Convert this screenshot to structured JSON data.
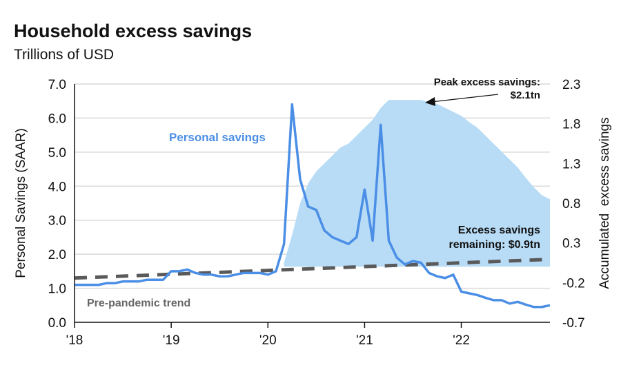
{
  "title": "Household excess savings",
  "subtitle": "Trillions of USD",
  "chart_data": {
    "type": "line",
    "title": "Household excess savings",
    "subtitle": "Trillions of USD",
    "ylabel": "Personal Savings (SAAR)",
    "y2label": "Accumulated  excess savings",
    "ylim": [
      0,
      7
    ],
    "y2lim": [
      -0.7,
      2.3
    ],
    "yticks": [
      "0.0",
      "1.0",
      "2.0",
      "3.0",
      "4.0",
      "5.0",
      "6.0",
      "7.0"
    ],
    "y2ticks": [
      "-0.7",
      "-0.2",
      "0.3",
      "0.8",
      "1.3",
      "1.8",
      "2.3"
    ],
    "xticks": [
      "'18",
      "'19",
      "'20",
      "'21",
      "'22"
    ],
    "x_start": "2018-01",
    "x_end": "2022-12",
    "frequency": "monthly",
    "grid": true,
    "series": [
      {
        "name": "Personal savings",
        "color": "#4a8ee6",
        "axis": "left",
        "type": "line",
        "values": [
          1.1,
          1.1,
          1.1,
          1.1,
          1.15,
          1.15,
          1.2,
          1.2,
          1.2,
          1.25,
          1.25,
          1.25,
          1.5,
          1.5,
          1.55,
          1.45,
          1.4,
          1.4,
          1.35,
          1.35,
          1.4,
          1.45,
          1.45,
          1.45,
          1.4,
          1.5,
          2.3,
          6.4,
          4.2,
          3.4,
          3.3,
          2.7,
          2.5,
          2.4,
          2.3,
          2.5,
          3.9,
          2.4,
          5.8,
          2.4,
          1.9,
          1.7,
          1.8,
          1.75,
          1.45,
          1.35,
          1.3,
          1.4,
          0.9,
          0.85,
          0.8,
          0.72,
          0.65,
          0.65,
          0.55,
          0.6,
          0.52,
          0.45,
          0.45,
          0.5
        ]
      },
      {
        "name": "Pre-pandemic trend",
        "color": "#5a5a5a",
        "axis": "left",
        "type": "dashed",
        "values_start": 1.3,
        "values_end": 1.85
      },
      {
        "name": "Accumulated excess savings",
        "color": "#b8dcf6",
        "axis": "right",
        "type": "area",
        "start_index": 26,
        "values": [
          0.05,
          0.4,
          0.8,
          1.05,
          1.2,
          1.3,
          1.4,
          1.5,
          1.55,
          1.65,
          1.75,
          1.85,
          2.0,
          2.1,
          2.1,
          2.1,
          2.1,
          2.1,
          2.07,
          2.05,
          2.0,
          1.95,
          1.9,
          1.82,
          1.75,
          1.65,
          1.55,
          1.45,
          1.35,
          1.25,
          1.12,
          1.0,
          0.9,
          0.85
        ]
      }
    ],
    "annotations": [
      {
        "text": "Personal savings",
        "color": "#4a8ee6"
      },
      {
        "text": "Pre-pandemic trend",
        "color": "#666666"
      },
      {
        "line1": "Peak excess savings:",
        "line2": "$2.1tn"
      },
      {
        "line1": "Excess savings",
        "line2": "remaining: $0.9tn"
      }
    ]
  }
}
